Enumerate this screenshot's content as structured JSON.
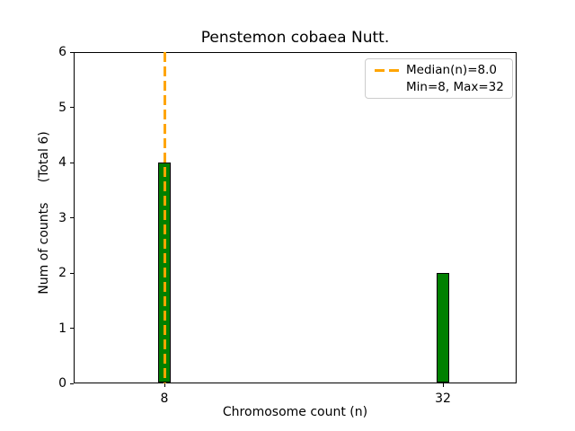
{
  "figure": {
    "title": "Penstemon cobaea Nutt.",
    "xlabel": "Chromosome count (n)",
    "ylabel": "Num of counts     (Total 6)"
  },
  "legend": {
    "position": "upper right",
    "entries": [
      {
        "label": "Median(n)=8.0",
        "marker": "orange-dashed-line"
      },
      {
        "label": "Min=8, Max=32",
        "marker": "none"
      }
    ]
  },
  "chart_data": {
    "type": "bar",
    "title": "Penstemon cobaea Nutt.",
    "xlabel": "Chromosome count (n)",
    "ylabel": "Num of counts (Total 6)",
    "categories": [
      8,
      32
    ],
    "values": [
      4,
      2
    ],
    "total": 6,
    "xticks": [
      "8",
      "32"
    ],
    "yticks": [
      0,
      1,
      2,
      3,
      4,
      5,
      6
    ],
    "ylim": [
      0,
      6
    ],
    "grid": false,
    "bar_color": "#008000",
    "bar_edge_color": "#000000",
    "median_line": {
      "value": 8.0,
      "color": "#FFA500",
      "linestyle": "dashed",
      "legend_label": "Median(n)=8.0"
    },
    "annotations": {
      "min": 8,
      "max": 32,
      "median": 8.0
    },
    "legend_entries": [
      "Median(n)=8.0",
      "Min=8, Max=32"
    ]
  }
}
